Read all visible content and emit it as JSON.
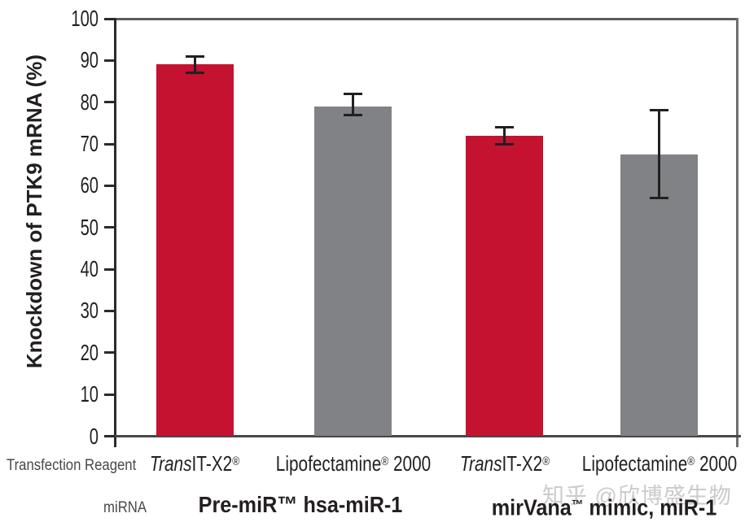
{
  "watermark": {
    "text": "知乎 @欣博盛生物",
    "color": "#cbcbcb"
  },
  "labels": {
    "transfection_reagent_row": "Transfection Reagent",
    "mirna_row": "miRNA"
  },
  "chart_data": {
    "type": "bar",
    "title": "",
    "xlabel": "",
    "ylabel": "Knockdown of PTK9 mRNA (%)",
    "ylim": [
      0,
      100
    ],
    "yticks": [
      0,
      10,
      20,
      30,
      40,
      50,
      60,
      70,
      80,
      90,
      100
    ],
    "grid": false,
    "legend": "none",
    "categories": [
      "TransIT-X2®",
      "Lipofectamine® 2000",
      "TransIT-X2®",
      "Lipofectamine® 2000"
    ],
    "values": [
      89,
      79,
      72,
      67.5
    ],
    "errors_plus": [
      2,
      3,
      2,
      10.5
    ],
    "errors_minus": [
      2,
      2,
      2,
      10.5
    ],
    "bar_colors": [
      "#c41230",
      "#808285",
      "#c41230",
      "#808285"
    ],
    "category_parts": [
      [
        {
          "t": "Trans",
          "i": true
        },
        {
          "t": "IT-X2"
        },
        {
          "t": "®",
          "s": true
        }
      ],
      [
        {
          "t": "Lipofectamine"
        },
        {
          "t": "®",
          "s": true
        },
        {
          "t": " 2000"
        }
      ],
      [
        {
          "t": "Trans",
          "i": true
        },
        {
          "t": "IT-X2"
        },
        {
          "t": "®",
          "s": true
        }
      ],
      [
        {
          "t": "Lipofectamine"
        },
        {
          "t": "®",
          "s": true
        },
        {
          "t": " 2000"
        }
      ]
    ],
    "groups": [
      {
        "label": "Pre-miR™ hsa-miR-1",
        "parts": [
          {
            "t": "Pre-miR™ hsa-miR-1"
          }
        ],
        "bars": [
          0,
          1
        ]
      },
      {
        "label": "mirVana™ mimic, miR-1",
        "parts": [
          {
            "t": "mirVana"
          },
          {
            "t": "™",
            "s": true
          },
          {
            "t": " mimic, miR-1"
          }
        ],
        "bars": [
          2,
          3
        ]
      }
    ],
    "colors": {
      "bar_red": "#c41230",
      "bar_gray": "#808285",
      "axis": "#2a2a2c",
      "frame": "#6d6e71",
      "error_bar": "#231f20"
    }
  }
}
